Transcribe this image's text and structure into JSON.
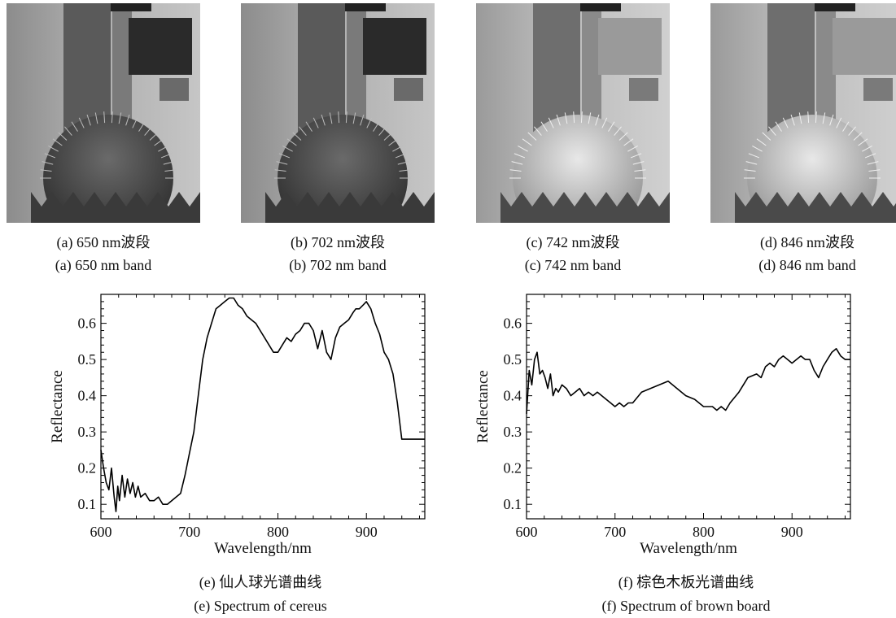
{
  "images": [
    {
      "cn": "(a) 650 nm波段",
      "en": "(a) 650 nm band",
      "plant": "dark"
    },
    {
      "cn": "(b) 702 nm波段",
      "en": "(b) 702 nm band",
      "plant": "dark"
    },
    {
      "cn": "(c) 742 nm波段",
      "en": "(c) 742 nm band",
      "plant": "bright"
    },
    {
      "cn": "(d) 846 nm波段",
      "en": "(d) 846 nm band",
      "plant": "bright"
    }
  ],
  "plot_captions": [
    {
      "cn": "(e) 仙人球光谱曲线",
      "en": "(e) Spectrum of cereus"
    },
    {
      "cn": "(f) 棕色木板光谱曲线",
      "en": "(f) Spectrum of brown board"
    }
  ],
  "chart_data": [
    {
      "type": "line",
      "xlabel": "Wavelength/nm",
      "ylabel": "Reflectance",
      "xlim": [
        600,
        966
      ],
      "ylim": [
        0.06,
        0.68
      ],
      "xticks": [
        600,
        700,
        800,
        900
      ],
      "yticks": [
        0.1,
        0.2,
        0.3,
        0.4,
        0.5,
        0.6
      ],
      "grid": false,
      "series": [
        {
          "x": [
            600,
            603,
            606,
            609,
            612,
            615,
            617,
            619,
            621,
            624,
            627,
            630,
            633,
            636,
            639,
            642,
            645,
            650,
            655,
            660,
            665,
            670,
            675,
            680,
            685,
            690,
            695,
            700,
            705,
            710,
            715,
            720,
            725,
            730,
            735,
            740,
            745,
            750,
            755,
            760,
            765,
            770,
            775,
            780,
            785,
            790,
            795,
            800,
            805,
            810,
            815,
            820,
            825,
            830,
            835,
            840,
            845,
            850,
            855,
            860,
            865,
            870,
            875,
            880,
            885,
            888,
            892,
            896,
            900,
            905,
            910,
            915,
            920,
            925,
            930,
            935,
            940,
            945,
            950,
            955,
            960,
            963,
            966
          ],
          "y": [
            0.25,
            0.2,
            0.16,
            0.14,
            0.2,
            0.12,
            0.08,
            0.15,
            0.11,
            0.18,
            0.12,
            0.17,
            0.13,
            0.16,
            0.12,
            0.15,
            0.12,
            0.13,
            0.11,
            0.11,
            0.12,
            0.1,
            0.1,
            0.11,
            0.12,
            0.13,
            0.18,
            0.24,
            0.3,
            0.4,
            0.5,
            0.56,
            0.6,
            0.64,
            0.65,
            0.66,
            0.67,
            0.67,
            0.65,
            0.64,
            0.62,
            0.61,
            0.6,
            0.58,
            0.56,
            0.54,
            0.52,
            0.52,
            0.54,
            0.56,
            0.55,
            0.57,
            0.58,
            0.6,
            0.6,
            0.58,
            0.53,
            0.58,
            0.52,
            0.5,
            0.56,
            0.59,
            0.6,
            0.61,
            0.63,
            0.64,
            0.64,
            0.65,
            0.66,
            0.64,
            0.6,
            0.57,
            0.52,
            0.5,
            0.46,
            0.38,
            0.28,
            0.28,
            0.28,
            0.28,
            0.28,
            0.28,
            0.28
          ]
        }
      ]
    },
    {
      "type": "line",
      "xlabel": "Wavelength/nm",
      "ylabel": "Reflectance",
      "xlim": [
        600,
        966
      ],
      "ylim": [
        0.06,
        0.68
      ],
      "xticks": [
        600,
        700,
        800,
        900
      ],
      "yticks": [
        0.1,
        0.2,
        0.3,
        0.4,
        0.5,
        0.6
      ],
      "grid": false,
      "series": [
        {
          "x": [
            600,
            603,
            606,
            609,
            612,
            615,
            618,
            621,
            624,
            627,
            630,
            633,
            636,
            640,
            645,
            650,
            655,
            660,
            665,
            670,
            675,
            680,
            685,
            690,
            695,
            700,
            705,
            710,
            715,
            720,
            730,
            740,
            750,
            760,
            770,
            780,
            790,
            800,
            810,
            815,
            820,
            825,
            830,
            840,
            850,
            860,
            865,
            870,
            875,
            880,
            885,
            890,
            895,
            900,
            905,
            910,
            915,
            920,
            925,
            930,
            935,
            940,
            945,
            950,
            955,
            960,
            966
          ],
          "y": [
            0.35,
            0.47,
            0.43,
            0.5,
            0.52,
            0.46,
            0.47,
            0.45,
            0.42,
            0.46,
            0.4,
            0.42,
            0.41,
            0.43,
            0.42,
            0.4,
            0.41,
            0.42,
            0.4,
            0.41,
            0.4,
            0.41,
            0.4,
            0.39,
            0.38,
            0.37,
            0.38,
            0.37,
            0.38,
            0.38,
            0.41,
            0.42,
            0.43,
            0.44,
            0.42,
            0.4,
            0.39,
            0.37,
            0.37,
            0.36,
            0.37,
            0.36,
            0.38,
            0.41,
            0.45,
            0.46,
            0.45,
            0.48,
            0.49,
            0.48,
            0.5,
            0.51,
            0.5,
            0.49,
            0.5,
            0.51,
            0.5,
            0.5,
            0.47,
            0.45,
            0.48,
            0.5,
            0.52,
            0.53,
            0.51,
            0.5,
            0.5
          ]
        }
      ]
    }
  ]
}
